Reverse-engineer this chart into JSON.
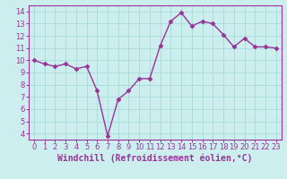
{
  "x": [
    0,
    1,
    2,
    3,
    4,
    5,
    6,
    7,
    8,
    9,
    10,
    11,
    12,
    13,
    14,
    15,
    16,
    17,
    18,
    19,
    20,
    21,
    22,
    23
  ],
  "y": [
    10.0,
    9.7,
    9.5,
    9.7,
    9.3,
    9.5,
    7.5,
    3.8,
    6.8,
    7.5,
    8.5,
    8.5,
    11.2,
    13.2,
    13.9,
    12.8,
    13.2,
    13.0,
    12.1,
    11.1,
    11.8,
    11.1,
    11.1,
    11.0
  ],
  "line_color": "#993399",
  "marker": "D",
  "marker_size": 2.5,
  "xlabel": "Windchill (Refroidissement éolien,°C)",
  "xlabel_fontsize": 7,
  "xlim": [
    -0.5,
    23.5
  ],
  "ylim": [
    3.5,
    14.5
  ],
  "yticks": [
    4,
    5,
    6,
    7,
    8,
    9,
    10,
    11,
    12,
    13,
    14
  ],
  "xticks": [
    0,
    1,
    2,
    3,
    4,
    5,
    6,
    7,
    8,
    9,
    10,
    11,
    12,
    13,
    14,
    15,
    16,
    17,
    18,
    19,
    20,
    21,
    22,
    23
  ],
  "xtick_labels": [
    "0",
    "1",
    "2",
    "3",
    "4",
    "5",
    "6",
    "7",
    "8",
    "9",
    "10",
    "11",
    "12",
    "13",
    "14",
    "15",
    "16",
    "17",
    "18",
    "19",
    "20",
    "21",
    "22",
    "23"
  ],
  "grid_color": "#aadddd",
  "bg_color": "#cceeee",
  "border_color": "#993399",
  "tick_fontsize": 6,
  "line_width": 1.0,
  "spine_color": "#993399",
  "bottom_bar_color": "#993399",
  "bottom_bar_height": 0.12
}
